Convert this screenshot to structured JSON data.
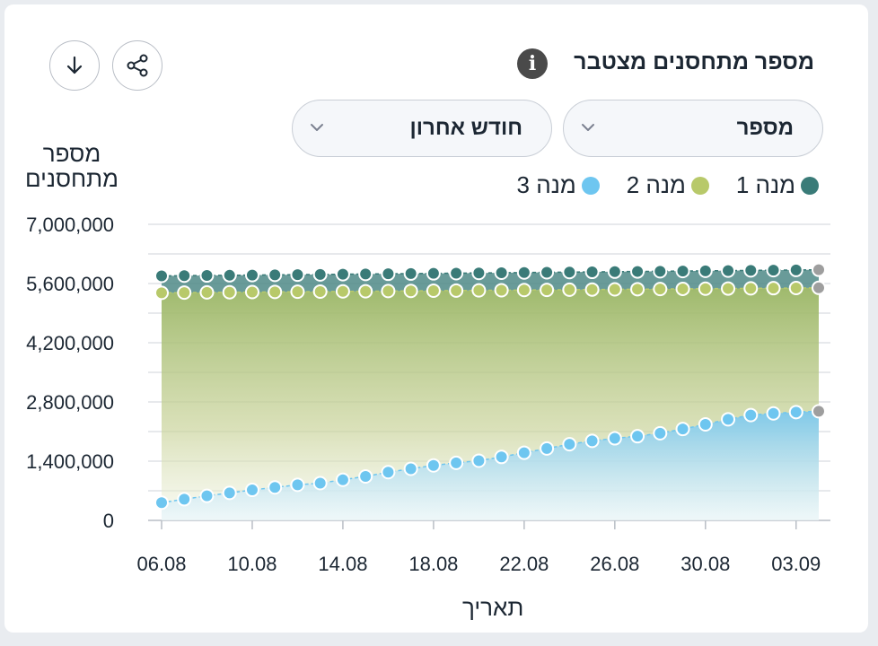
{
  "header": {
    "title": "מספר מתחסנים מצטבר",
    "info_icon": "info-icon",
    "share_icon": "share-icon",
    "download_icon": "download-icon"
  },
  "filters": {
    "metric_select": "מספר",
    "period_select": "חודש אחרון"
  },
  "colors": {
    "dose1": "#3a7b78",
    "dose2": "#b8c96a",
    "dose3": "#6ec6f0",
    "last_point": "#9e9e9e"
  },
  "chart_data": {
    "type": "area",
    "xlabel": "תאריך",
    "ylabel": "מספר מתחסנים",
    "ylim": [
      0,
      7000000
    ],
    "y_ticks": [
      "7,000,000",
      "5,600,000",
      "4,200,000",
      "2,800,000",
      "1,400,000",
      "0"
    ],
    "x_ticks": [
      "06.08",
      "10.08",
      "14.08",
      "18.08",
      "22.08",
      "26.08",
      "30.08",
      "03.09"
    ],
    "grid": true,
    "legend_position": "top-right",
    "x": [
      "06.08",
      "07.08",
      "08.08",
      "09.08",
      "10.08",
      "11.08",
      "12.08",
      "13.08",
      "14.08",
      "15.08",
      "16.08",
      "17.08",
      "18.08",
      "19.08",
      "20.08",
      "21.08",
      "22.08",
      "23.08",
      "24.08",
      "25.08",
      "26.08",
      "27.08",
      "28.08",
      "29.08",
      "30.08",
      "31.08",
      "01.09",
      "02.09",
      "03.09",
      "04.09"
    ],
    "series": [
      {
        "name": "מנה 1",
        "values": [
          5780000,
          5785000,
          5790000,
          5795000,
          5800000,
          5805000,
          5810000,
          5815000,
          5820000,
          5825000,
          5830000,
          5835000,
          5840000,
          5845000,
          5850000,
          5855000,
          5860000,
          5865000,
          5870000,
          5875000,
          5880000,
          5885000,
          5890000,
          5895000,
          5900000,
          5905000,
          5910000,
          5915000,
          5920000,
          5925000
        ]
      },
      {
        "name": "מנה 2",
        "values": [
          5380000,
          5385000,
          5390000,
          5394000,
          5398000,
          5402000,
          5406000,
          5410000,
          5414000,
          5418000,
          5422000,
          5426000,
          5430000,
          5434000,
          5438000,
          5442000,
          5446000,
          5450000,
          5454000,
          5458000,
          5462000,
          5466000,
          5470000,
          5474000,
          5478000,
          5482000,
          5486000,
          5490000,
          5494000,
          5498000
        ]
      },
      {
        "name": "מנה 3",
        "values": [
          420000,
          500000,
          580000,
          650000,
          720000,
          780000,
          840000,
          880000,
          960000,
          1040000,
          1140000,
          1220000,
          1300000,
          1360000,
          1410000,
          1500000,
          1600000,
          1700000,
          1800000,
          1880000,
          1940000,
          1990000,
          2060000,
          2160000,
          2270000,
          2390000,
          2490000,
          2530000,
          2560000,
          2580000
        ]
      }
    ]
  }
}
